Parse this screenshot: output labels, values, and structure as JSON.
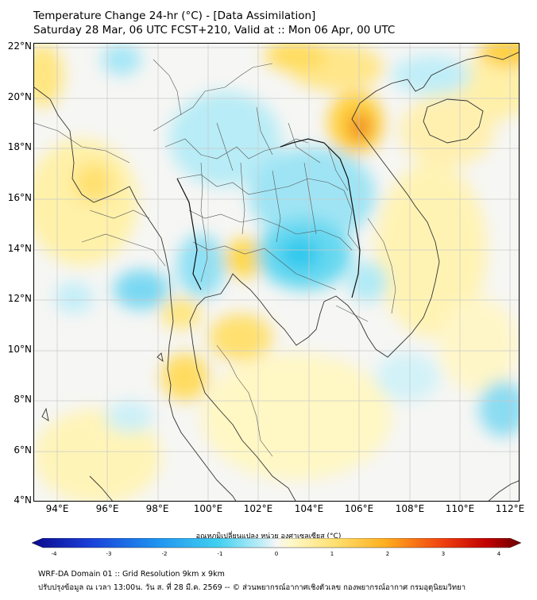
{
  "title": {
    "line1": "Temperature Change 24-hr (°C) - [Data Assimilation]",
    "line2": "Saturday 28 Mar, 06 UTC FCST+210, Valid at :: Mon 06 Apr, 00 UTC"
  },
  "axes": {
    "lat_labels": [
      "22°N",
      "20°N",
      "18°N",
      "16°N",
      "14°N",
      "12°N",
      "10°N",
      "8°N",
      "6°N",
      "4°N"
    ],
    "lon_labels": [
      "94°E",
      "96°E",
      "98°E",
      "100°E",
      "102°E",
      "104°E",
      "106°E",
      "108°E",
      "110°E",
      "112°E"
    ]
  },
  "colorbar": {
    "label": "อุณหภูมิเปลี่ยนแปลง หน่วย องศาเซลเซียส (°C)",
    "ticks": [
      "-4",
      "-3",
      "-2",
      "-1",
      "0",
      "1",
      "2",
      "3",
      "4"
    ]
  },
  "footer": {
    "line1": "WRF-DA Domain 01 :: Grid Resolution 9km x 9km",
    "line2": "ปรับปรุงข้อมูล ณ เวลา 13:00น. วัน ส. ที่ 28 มี.ค. 2569 -- © ส่วนพยากรณ์อากาศเชิงตัวเลข กองพยากรณ์อากาศ กรมอุตุนิยมวิทยา"
  },
  "colors": {
    "cold_blue": "#33ccee",
    "light_cyan": "#c8f0f8",
    "light_yellow": "#fff5b0",
    "warm_yellow": "#ffd84a",
    "orange": "#f0a020",
    "dark_orange": "#e07010",
    "neutral": "#f6f6f6"
  }
}
